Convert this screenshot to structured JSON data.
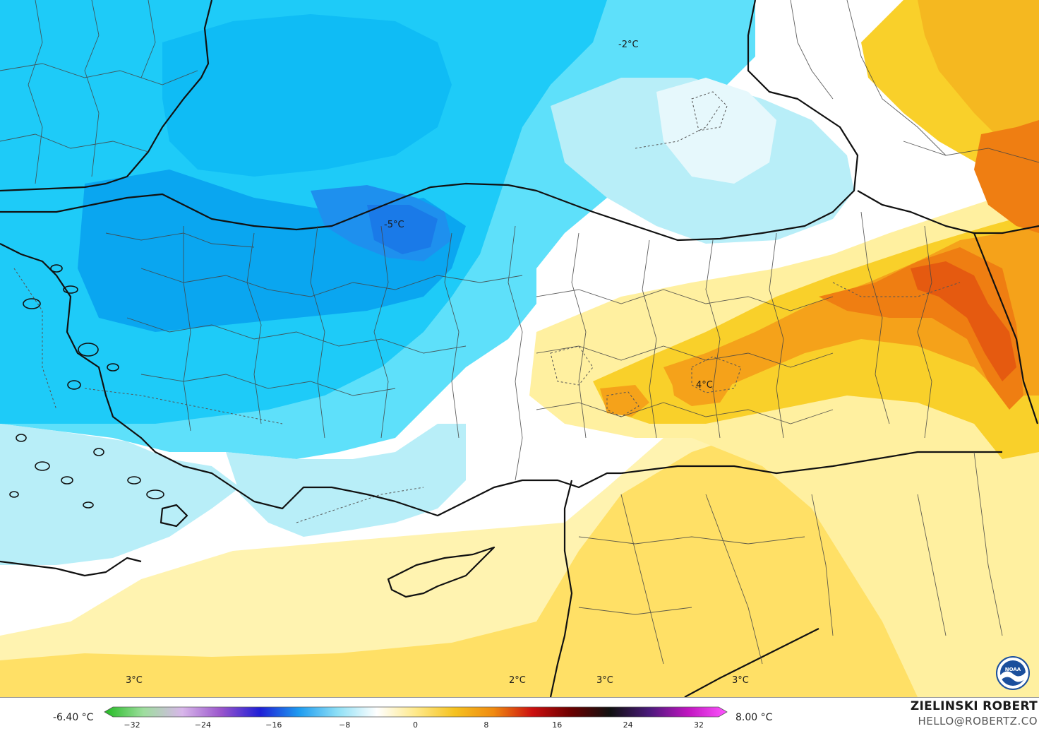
{
  "map": {
    "labels": [
      {
        "id": "label-black-sea-east",
        "text": "-2°C"
      },
      {
        "id": "label-central-anatolia",
        "text": "-5°C"
      },
      {
        "id": "label-southeast-anatolia",
        "text": "4°C"
      },
      {
        "id": "label-mediterranean-west",
        "text": "3°C"
      },
      {
        "id": "label-levant-coast",
        "text": "2°C"
      },
      {
        "id": "label-levant-inland",
        "text": "3°C"
      },
      {
        "id": "label-syria-east",
        "text": "3°C"
      }
    ]
  },
  "legend": {
    "min_label": "-6.40 °C",
    "max_label": "8.00 °C",
    "ticks": [
      "−32",
      "−24",
      "−16",
      "−8",
      "0",
      "8",
      "16",
      "24",
      "32"
    ],
    "colors": [
      "#22bb22",
      "#9ede9e",
      "#d8b6ea",
      "#9a55cc",
      "#1f1fd6",
      "#1e9cf0",
      "#8fe0f6",
      "#ffffff",
      "#ffe98a",
      "#f5c220",
      "#f08a10",
      "#cc1010",
      "#6a0000",
      "#101010",
      "#4a1a7a",
      "#c015c0",
      "#ff55ff"
    ]
  },
  "attribution": {
    "name": "ZIELINSKI ROBERT",
    "email": "HELLO@ROBERTZ.CO",
    "logo": "noaa-logo"
  },
  "palette": {
    "sea_blue": "#5ee0fa",
    "land_blue": "#1ecbf8",
    "deep_blue": "#0aa6f0",
    "cold_core": "#1e90ee",
    "white": "#ffffff",
    "pale_yellow": "#fff3b0",
    "yellow": "#ffe066",
    "warm_yellow": "#f9d02a",
    "orange": "#f5a21a",
    "dark_orange": "#ef7e12",
    "red_orange": "#e55a10"
  }
}
